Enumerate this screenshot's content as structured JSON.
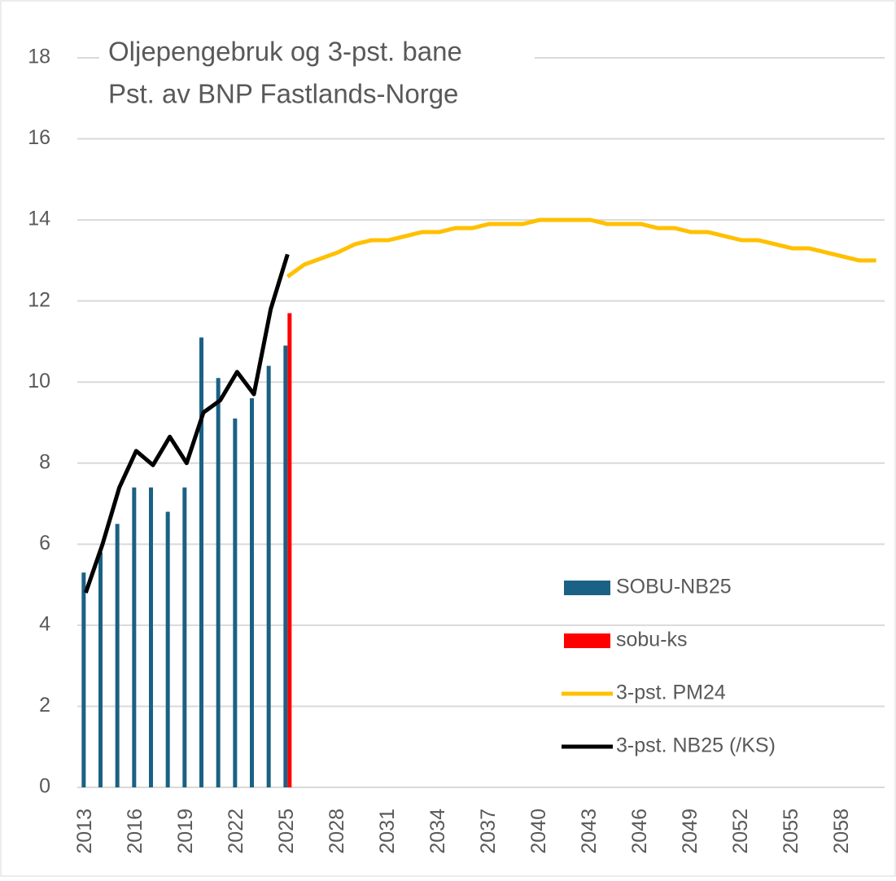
{
  "chart_data": {
    "type": "bar",
    "title": [
      "Oljepengebruk og 3-pst. bane",
      "Pst. av BNP Fastlands-Norge"
    ],
    "categories": [
      "2013",
      null,
      null,
      "2016",
      null,
      null,
      "2019",
      null,
      null,
      "2022",
      null,
      null,
      "2025",
      null,
      null,
      "2028",
      null,
      null,
      "2031",
      null,
      null,
      "2034",
      null,
      null,
      "2037",
      null,
      null,
      "2040",
      null,
      null,
      "2043",
      null,
      null,
      "2046",
      null,
      null,
      "2049",
      null,
      null,
      "2052",
      null,
      null,
      "2055",
      null,
      null,
      "2058",
      null,
      null
    ],
    "series": [
      {
        "name": "SOBU-NB25",
        "type": "bar",
        "color": "#1b6185",
        "values": [
          5.3,
          5.8,
          6.5,
          7.4,
          7.4,
          6.8,
          7.4,
          11.1,
          10.1,
          9.1,
          9.6,
          10.4,
          10.9,
          null,
          null,
          null,
          null,
          null,
          null,
          null,
          null,
          null,
          null,
          null,
          null,
          null,
          null,
          null,
          null,
          null,
          null,
          null,
          null,
          null,
          null,
          null,
          null,
          null,
          null,
          null,
          null,
          null,
          null,
          null,
          null,
          null,
          null,
          null
        ]
      },
      {
        "name": "sobu-ks",
        "type": "bar",
        "color": "#ff0000",
        "values": [
          null,
          null,
          null,
          null,
          null,
          null,
          null,
          null,
          null,
          null,
          null,
          null,
          11.7,
          null,
          null,
          null,
          null,
          null,
          null,
          null,
          null,
          null,
          null,
          null,
          null,
          null,
          null,
          null,
          null,
          null,
          null,
          null,
          null,
          null,
          null,
          null,
          null,
          null,
          null,
          null,
          null,
          null,
          null,
          null,
          null,
          null,
          null,
          null
        ]
      },
      {
        "name": "3-pst. PM24",
        "type": "line",
        "color": "#ffc000",
        "values": [
          null,
          null,
          null,
          null,
          null,
          null,
          null,
          null,
          null,
          null,
          null,
          null,
          12.6,
          12.9,
          13.05,
          13.2,
          13.4,
          13.5,
          13.5,
          13.6,
          13.7,
          13.7,
          13.8,
          13.8,
          13.9,
          13.9,
          13.9,
          14.0,
          14.0,
          14.0,
          14.0,
          13.9,
          13.9,
          13.9,
          13.8,
          13.8,
          13.7,
          13.7,
          13.6,
          13.5,
          13.5,
          13.4,
          13.3,
          13.3,
          13.2,
          13.1,
          13.0,
          13.0
        ]
      },
      {
        "name": "3-pst. NB25 (/KS)",
        "type": "line",
        "color": "#000000",
        "values": [
          4.8,
          6.0,
          7.4,
          8.3,
          7.95,
          8.65,
          8.0,
          9.25,
          9.55,
          10.25,
          9.7,
          11.8,
          13.15,
          null,
          null,
          null,
          null,
          null,
          null,
          null,
          null,
          null,
          null,
          null,
          null,
          null,
          null,
          null,
          null,
          null,
          null,
          null,
          null,
          null,
          null,
          null,
          null,
          null,
          null,
          null,
          null,
          null,
          null,
          null,
          null,
          null,
          null,
          null
        ]
      }
    ],
    "ylim": [
      0,
      18
    ],
    "yticks": [
      0,
      2,
      4,
      6,
      8,
      10,
      12,
      14,
      16,
      18
    ],
    "grid": true,
    "legend": "lower right"
  }
}
